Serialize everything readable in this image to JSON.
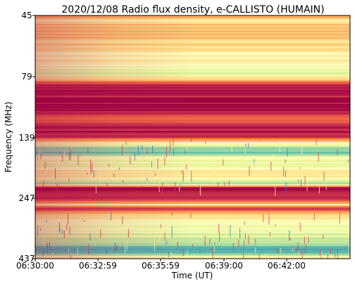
{
  "chart_data": {
    "type": "heatmap",
    "title": "2020/12/08  Radio flux density, e-CALLISTO (HUMAIN)",
    "xlabel": "Time (UT)",
    "ylabel": "Frequency (MHz)",
    "x_range": [
      "06:30:00",
      "06:45:00"
    ],
    "x_ticks": [
      "06:30:00",
      "06:32:59",
      "06:35:59",
      "06:39:00",
      "06:42:00"
    ],
    "y_range_mhz": [
      45,
      437
    ],
    "y_ticks": [
      45,
      79,
      139,
      247,
      437
    ],
    "y_inverted": true,
    "colormap": "Spectral_r",
    "colorbar": false,
    "band_intensity_profile": [
      {
        "freq_mhz": 45,
        "level": 0.28
      },
      {
        "freq_mhz": 47,
        "level": 0.42
      },
      {
        "freq_mhz": 50,
        "level": 0.3
      },
      {
        "freq_mhz": 55,
        "level": 0.36
      },
      {
        "freq_mhz": 60,
        "level": 0.4
      },
      {
        "freq_mhz": 66,
        "level": 0.46
      },
      {
        "freq_mhz": 72,
        "level": 0.5
      },
      {
        "freq_mhz": 76,
        "level": 0.62
      },
      {
        "freq_mhz": 79,
        "level": 0.44
      },
      {
        "freq_mhz": 86,
        "level": 0.04
      },
      {
        "freq_mhz": 110,
        "level": 0.04
      },
      {
        "freq_mhz": 118,
        "level": 0.22
      },
      {
        "freq_mhz": 124,
        "level": 0.05
      },
      {
        "freq_mhz": 136,
        "level": 0.04
      },
      {
        "freq_mhz": 142,
        "level": 0.26
      },
      {
        "freq_mhz": 148,
        "level": 0.55
      },
      {
        "freq_mhz": 155,
        "level": 0.72
      },
      {
        "freq_mhz": 160,
        "level": 0.8
      },
      {
        "freq_mhz": 168,
        "level": 0.48
      },
      {
        "freq_mhz": 178,
        "level": 0.62
      },
      {
        "freq_mhz": 192,
        "level": 0.4
      },
      {
        "freq_mhz": 206,
        "level": 0.52
      },
      {
        "freq_mhz": 214,
        "level": 0.66
      },
      {
        "freq_mhz": 222,
        "level": 0.06
      },
      {
        "freq_mhz": 232,
        "level": 0.05
      },
      {
        "freq_mhz": 250,
        "level": 0.06
      },
      {
        "freq_mhz": 262,
        "level": 0.48
      },
      {
        "freq_mhz": 270,
        "level": 0.06
      },
      {
        "freq_mhz": 288,
        "level": 0.42
      },
      {
        "freq_mhz": 310,
        "level": 0.5
      },
      {
        "freq_mhz": 340,
        "level": 0.58
      },
      {
        "freq_mhz": 370,
        "level": 0.7
      },
      {
        "freq_mhz": 392,
        "level": 0.8
      },
      {
        "freq_mhz": 410,
        "level": 0.86
      },
      {
        "freq_mhz": 422,
        "level": 0.58
      },
      {
        "freq_mhz": 430,
        "level": 0.5
      },
      {
        "freq_mhz": 437,
        "level": 0.35
      }
    ]
  }
}
